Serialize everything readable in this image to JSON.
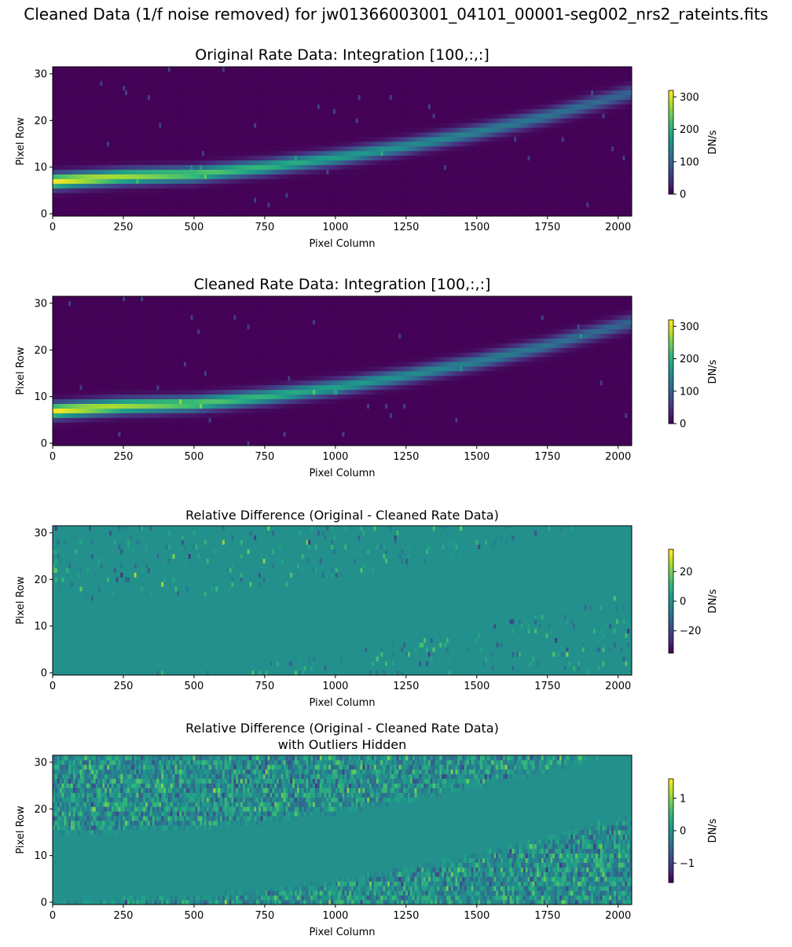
{
  "figure": {
    "suptitle": "Cleaned Data (1/f noise removed) for jw01366003001_04101_00001-seg002_nrs2_rateints.fits"
  },
  "colors": {
    "viridis": [
      "#440154",
      "#482878",
      "#3e4989",
      "#31688e",
      "#26828e",
      "#1f9e89",
      "#35b779",
      "#6ece58",
      "#b5de2b",
      "#fde725"
    ]
  },
  "chart_data": [
    {
      "type": "heatmap",
      "title": "Original Rate Data: Integration [100,:,:]",
      "xlabel": "Pixel Column",
      "ylabel": "Pixel Row",
      "xlim": [
        0,
        2048
      ],
      "ylim": [
        -0.5,
        31.5
      ],
      "xticks": [
        0,
        250,
        500,
        750,
        1000,
        1250,
        1500,
        1750,
        2000
      ],
      "yticks": [
        0,
        10,
        20,
        30
      ],
      "colorbar": {
        "label": "DN/s",
        "vmin": 0,
        "vmax": 320,
        "ticks": [
          0,
          100,
          200,
          300
        ]
      },
      "trace": {
        "row_at": [
          [
            0,
            7
          ],
          [
            250,
            8
          ],
          [
            500,
            8.5
          ],
          [
            750,
            10
          ],
          [
            1000,
            12
          ],
          [
            1250,
            14.5
          ],
          [
            1500,
            17.5
          ],
          [
            1750,
            21
          ],
          [
            2048,
            26
          ]
        ]
      }
    },
    {
      "type": "heatmap",
      "title": "Cleaned Rate Data: Integration [100,:,:]",
      "xlabel": "Pixel Column",
      "ylabel": "Pixel Row",
      "xlim": [
        0,
        2048
      ],
      "ylim": [
        -0.5,
        31.5
      ],
      "xticks": [
        0,
        250,
        500,
        750,
        1000,
        1250,
        1500,
        1750,
        2000
      ],
      "yticks": [
        0,
        10,
        20,
        30
      ],
      "colorbar": {
        "label": "DN/s",
        "vmin": 0,
        "vmax": 320,
        "ticks": [
          0,
          100,
          200,
          300
        ]
      },
      "trace": {
        "row_at": [
          [
            0,
            7
          ],
          [
            250,
            8
          ],
          [
            500,
            8.5
          ],
          [
            750,
            10
          ],
          [
            1000,
            12
          ],
          [
            1250,
            14.5
          ],
          [
            1500,
            17.5
          ],
          [
            1750,
            21
          ],
          [
            2048,
            26
          ]
        ]
      }
    },
    {
      "type": "heatmap",
      "title": "Relative Difference (Original - Cleaned Rate Data)",
      "xlabel": "Pixel Column",
      "ylabel": "Pixel Row",
      "xlim": [
        0,
        2048
      ],
      "ylim": [
        -0.5,
        31.5
      ],
      "xticks": [
        0,
        250,
        500,
        750,
        1000,
        1250,
        1500,
        1750,
        2000
      ],
      "yticks": [
        0,
        10,
        20,
        30
      ],
      "colorbar": {
        "label": "DN/s",
        "vmin": -35,
        "vmax": 35,
        "ticks": [
          -20,
          0,
          20
        ]
      }
    },
    {
      "type": "heatmap",
      "title": "Relative Difference (Original - Cleaned Rate Data)",
      "subtitle": "with Outliers Hidden",
      "xlabel": "Pixel Column",
      "ylabel": "Pixel Row",
      "xlim": [
        0,
        2048
      ],
      "ylim": [
        -0.5,
        31.5
      ],
      "xticks": [
        0,
        250,
        500,
        750,
        1000,
        1250,
        1500,
        1750,
        2000
      ],
      "yticks": [
        0,
        10,
        20,
        30
      ],
      "colorbar": {
        "label": "DN/s",
        "vmin": -1.6,
        "vmax": 1.6,
        "ticks": [
          -1,
          0,
          1
        ]
      }
    }
  ]
}
